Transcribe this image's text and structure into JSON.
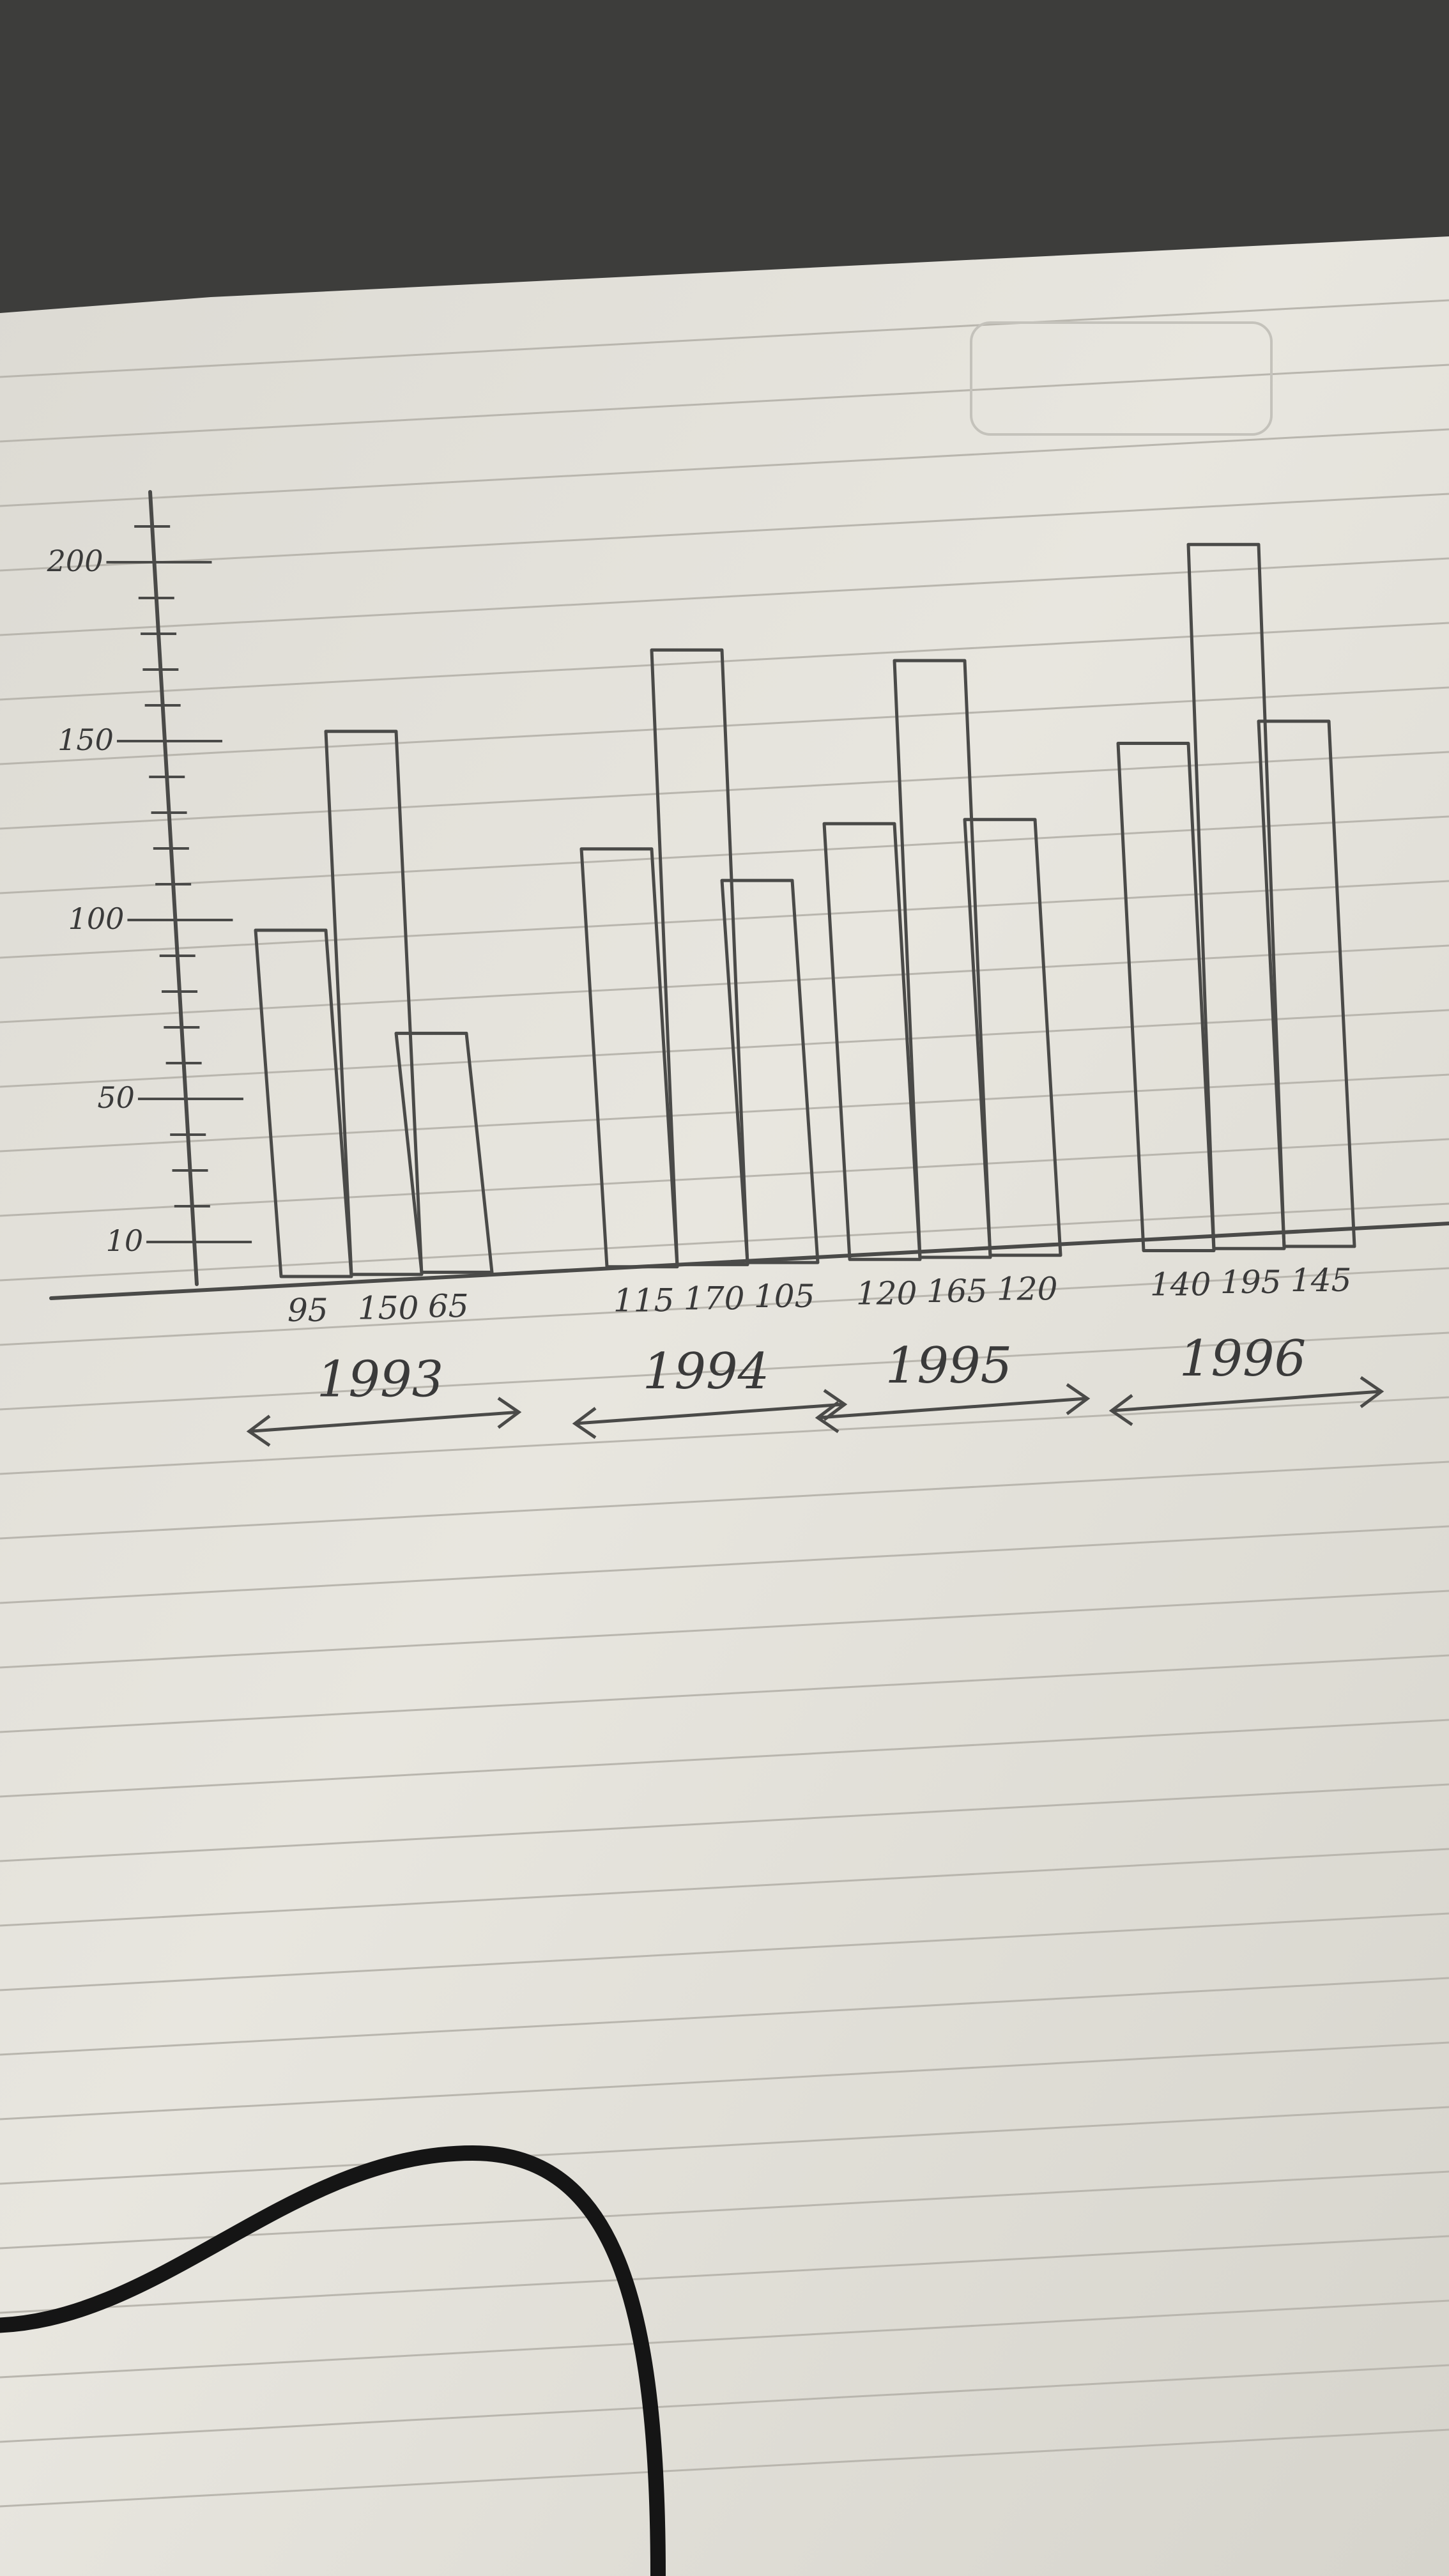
{
  "chart_data": {
    "type": "bar",
    "title": "",
    "xlabel": "",
    "ylabel": "",
    "ylim": [
      0,
      225
    ],
    "y_ticks_labeled": [
      10,
      50,
      100,
      150,
      200
    ],
    "groups": [
      {
        "label": "1993",
        "values": [
          95,
          150,
          65
        ]
      },
      {
        "label": "1994",
        "values": [
          115,
          170,
          105
        ]
      },
      {
        "label": "1995",
        "values": [
          120,
          165,
          120
        ]
      },
      {
        "label": "1996",
        "values": [
          140,
          195,
          145
        ]
      }
    ],
    "bar_value_labels": [
      "95",
      "150",
      "65",
      "115",
      "170",
      "105",
      "120",
      "165",
      "120",
      "140",
      "195",
      "145"
    ],
    "grid": false,
    "legend": "none"
  },
  "colors": {
    "paper": "#e6e4dd",
    "ruled_line": "#b9b6ae",
    "ink": "#4a4a48",
    "desk": "#3f3f3d"
  }
}
